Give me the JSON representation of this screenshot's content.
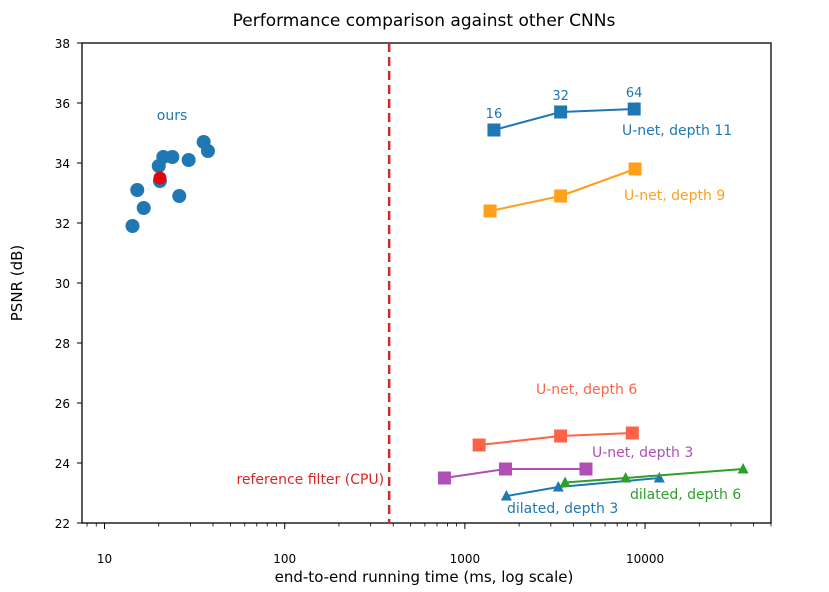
{
  "chart_data": {
    "type": "scatter",
    "title": "Performance comparison against other CNNs",
    "xlabel": "end-to-end running time (ms, log scale)",
    "ylabel": "PSNR (dB)",
    "xscale": "log",
    "xlim": [
      7.5,
      50000
    ],
    "ylim": [
      22,
      38
    ],
    "xticks": [
      {
        "value": 10,
        "label": "10"
      },
      {
        "value": 100,
        "label": "100"
      },
      {
        "value": 1000,
        "label": "1000"
      },
      {
        "value": 10000,
        "label": "10000"
      }
    ],
    "yticks": [
      {
        "value": 22,
        "label": "22"
      },
      {
        "value": 24,
        "label": "24"
      },
      {
        "value": 26,
        "label": "26"
      },
      {
        "value": 28,
        "label": "28"
      },
      {
        "value": 30,
        "label": "30"
      },
      {
        "value": 32,
        "label": "32"
      },
      {
        "value": 34,
        "label": "34"
      },
      {
        "value": 36,
        "label": "36"
      },
      {
        "value": 38,
        "label": "38"
      }
    ],
    "grid": false,
    "reference_line": {
      "x": 380,
      "label": "reference filter (CPU)",
      "color": "#d62728"
    },
    "ours": {
      "label": "ours",
      "color": "#1f77b4",
      "highlight_color": "#e8000b",
      "points": [
        {
          "x": 14.3,
          "y": 31.9
        },
        {
          "x": 15.2,
          "y": 33.1
        },
        {
          "x": 16.5,
          "y": 32.5
        },
        {
          "x": 20.0,
          "y": 33.9
        },
        {
          "x": 20.3,
          "y": 33.4
        },
        {
          "x": 21.2,
          "y": 34.2
        },
        {
          "x": 23.8,
          "y": 34.2
        },
        {
          "x": 26.0,
          "y": 32.9
        },
        {
          "x": 29.3,
          "y": 34.1
        },
        {
          "x": 35.5,
          "y": 34.7
        },
        {
          "x": 37.5,
          "y": 34.4
        }
      ],
      "highlight": {
        "x": 20.3,
        "y": 33.5
      }
    },
    "series": [
      {
        "name": "U-net, depth 11",
        "color": "#1f77b4",
        "marker": "square",
        "x": [
          1450,
          3400,
          8700
        ],
        "y": [
          35.1,
          35.7,
          35.8
        ],
        "point_labels": [
          "16",
          "32",
          "64"
        ]
      },
      {
        "name": "U-net, depth 9",
        "color": "#ff9f1c",
        "marker": "square",
        "x": [
          1380,
          3400,
          8800
        ],
        "y": [
          32.4,
          32.9,
          33.8
        ]
      },
      {
        "name": "U-net, depth 6",
        "color": "#ff6347",
        "marker": "square",
        "x": [
          1200,
          3400,
          8500
        ],
        "y": [
          24.6,
          24.9,
          25.0
        ]
      },
      {
        "name": "U-net, depth 3",
        "color": "#b04fb5",
        "marker": "square",
        "x": [
          770,
          1680,
          4700
        ],
        "y": [
          23.5,
          23.8,
          23.8
        ]
      },
      {
        "name": "dilated, depth 3",
        "color": "#1f77b4",
        "marker": "triangle",
        "x": [
          1700,
          3300,
          12000
        ],
        "y": [
          22.9,
          23.2,
          23.5
        ]
      },
      {
        "name": "dilated, depth 6",
        "color": "#2ca02c",
        "marker": "triangle",
        "x": [
          3600,
          7800,
          35000
        ],
        "y": [
          23.35,
          23.5,
          23.8
        ]
      }
    ]
  }
}
